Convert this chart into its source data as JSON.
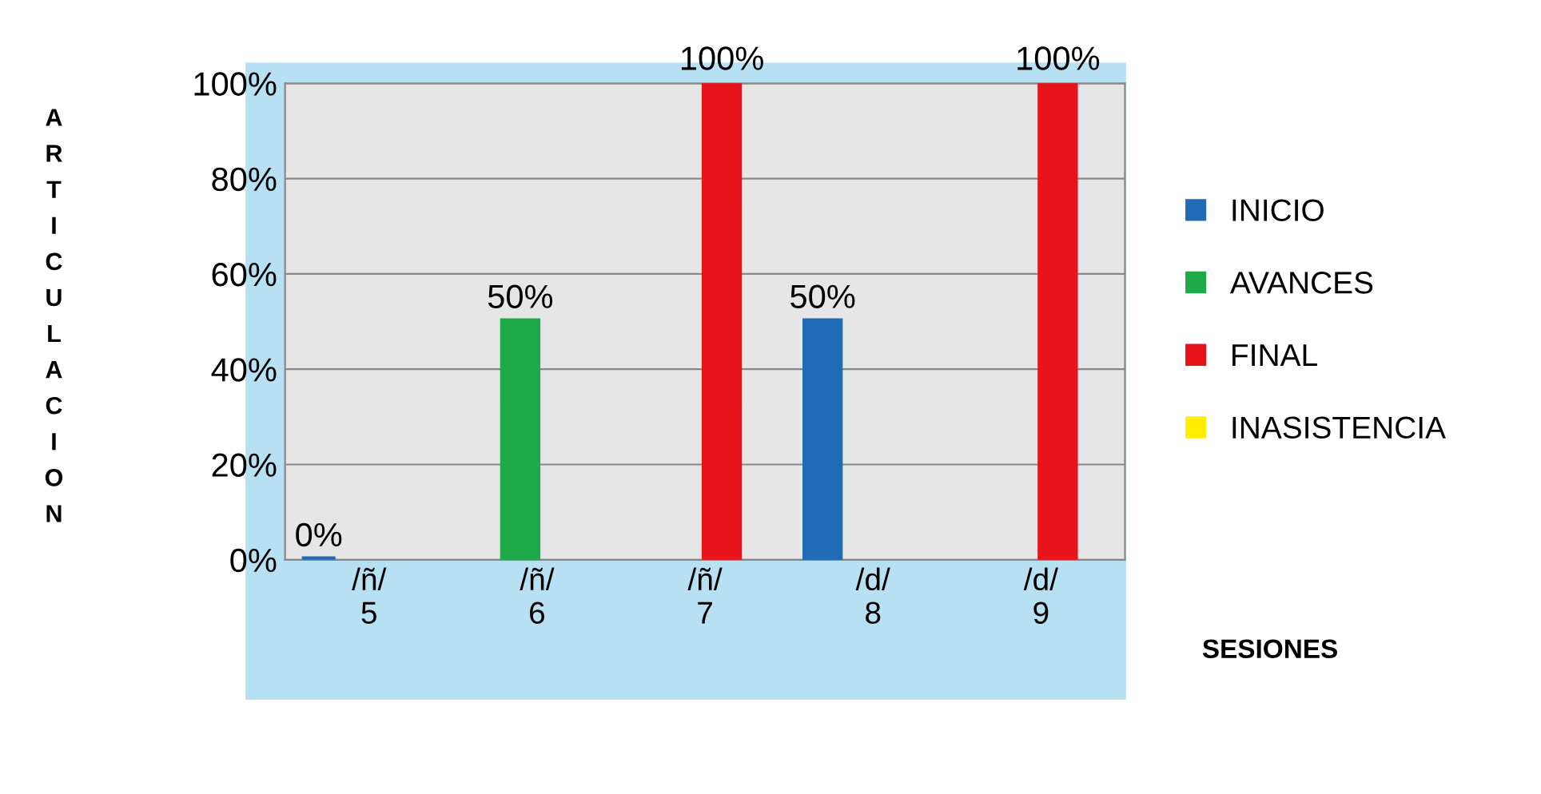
{
  "chart_data": {
    "type": "bar",
    "categories": [
      "/ñ/\n5",
      "/ñ/\n6",
      "/ñ/\n7",
      "/d/\n8",
      "/d/\n9"
    ],
    "series": [
      {
        "name": "INICIO",
        "color": "#1f6bb5",
        "values": [
          0,
          null,
          null,
          50,
          null
        ],
        "value_labels": [
          "0%",
          null,
          null,
          "50%",
          null
        ]
      },
      {
        "name": "AVANCES",
        "color": "#1faa4a",
        "values": [
          null,
          50,
          null,
          null,
          null
        ],
        "value_labels": [
          null,
          "50%",
          null,
          null,
          null
        ]
      },
      {
        "name": "FINAL",
        "color": "#e8141b",
        "values": [
          null,
          null,
          100,
          null,
          100
        ],
        "value_labels": [
          null,
          null,
          "100%",
          null,
          "100%"
        ]
      },
      {
        "name": "INASISTENCIA",
        "color": "#ffee00",
        "values": [
          null,
          null,
          null,
          null,
          null
        ]
      }
    ],
    "ylabel": "ARTICULACION",
    "xlabel": "SESIONES",
    "ylim": [
      0,
      100
    ],
    "yticks": [
      {
        "value": 0,
        "label": "0%"
      },
      {
        "value": 20,
        "label": "20%"
      },
      {
        "value": 40,
        "label": "40%"
      },
      {
        "value": 60,
        "label": "60%"
      },
      {
        "value": 80,
        "label": "80%"
      },
      {
        "value": 100,
        "label": "100%"
      }
    ],
    "grid": "y",
    "legend": "right"
  }
}
